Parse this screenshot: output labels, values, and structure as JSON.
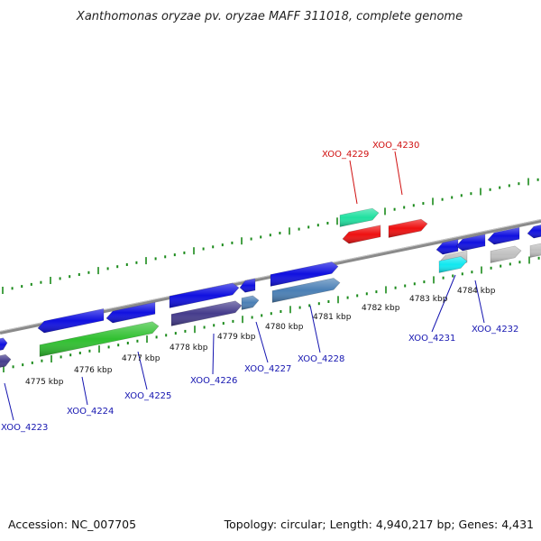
{
  "title": "Xanthomonas oryzae pv. oryzae MAFF 311018, complete genome",
  "footer": {
    "accession": "Accession: NC_007705",
    "summary": "Topology: circular; Length: 4,940,217 bp; Genes: 4,431"
  },
  "colors": {
    "blue_gene": "#1010e0",
    "green_gene": "#30c030",
    "purple_gene": "#453c8c",
    "steel_gene": "#4a7fb5",
    "teal_gene": "#20e0a0",
    "red_gene": "#ee1010",
    "gray_gene": "#c0c0c0",
    "cyan_gene": "#10e8f0",
    "tick_green": "#1a8a1a",
    "backbone": "#8a8a8a",
    "label_blue": "#1515b0",
    "label_red": "#d01010"
  },
  "scale_labels": [
    "4775 kbp",
    "4776 kbp",
    "4777 kbp",
    "4778 kbp",
    "4779 kbp",
    "4780 kbp",
    "4781 kbp",
    "4782 kbp",
    "4783 kbp",
    "4784 kbp"
  ],
  "gene_labels": [
    {
      "id": "XOO_4223",
      "color": "label_blue"
    },
    {
      "id": "XOO_4224",
      "color": "label_blue"
    },
    {
      "id": "XOO_4225",
      "color": "label_blue"
    },
    {
      "id": "XOO_4226",
      "color": "label_blue"
    },
    {
      "id": "XOO_4227",
      "color": "label_blue"
    },
    {
      "id": "XOO_4228",
      "color": "label_blue"
    },
    {
      "id": "XOO_4231",
      "color": "label_blue"
    },
    {
      "id": "XOO_4232",
      "color": "label_blue"
    },
    {
      "id": "XOO_4229",
      "color": "label_red"
    },
    {
      "id": "XOO_4230",
      "color": "label_red"
    }
  ]
}
